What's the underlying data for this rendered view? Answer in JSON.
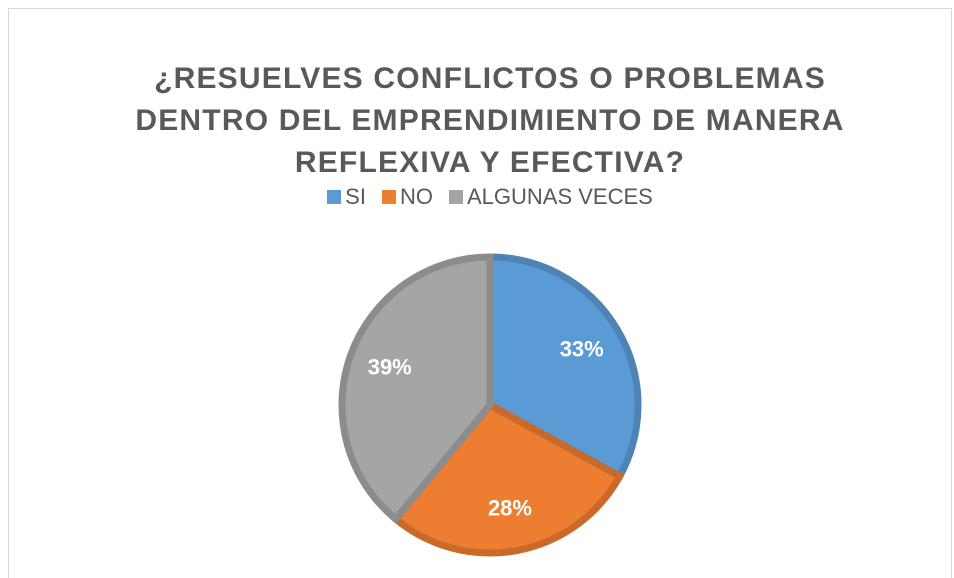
{
  "chart_data": {
    "type": "pie",
    "title": "¿RESUELVES CONFLICTOS O PROBLEMAS DENTRO DEL EMPRENDIMIENTO DE MANERA REFLEXIVA Y EFECTIVA?",
    "categories": [
      "SI",
      "NO",
      "ALGUNAS VECES"
    ],
    "values": [
      33,
      28,
      39
    ],
    "value_labels": [
      "33%",
      "28%",
      "39%"
    ],
    "colors": [
      "#5b9bd5",
      "#ed7d31",
      "#a5a5a5"
    ],
    "legend": "top"
  }
}
